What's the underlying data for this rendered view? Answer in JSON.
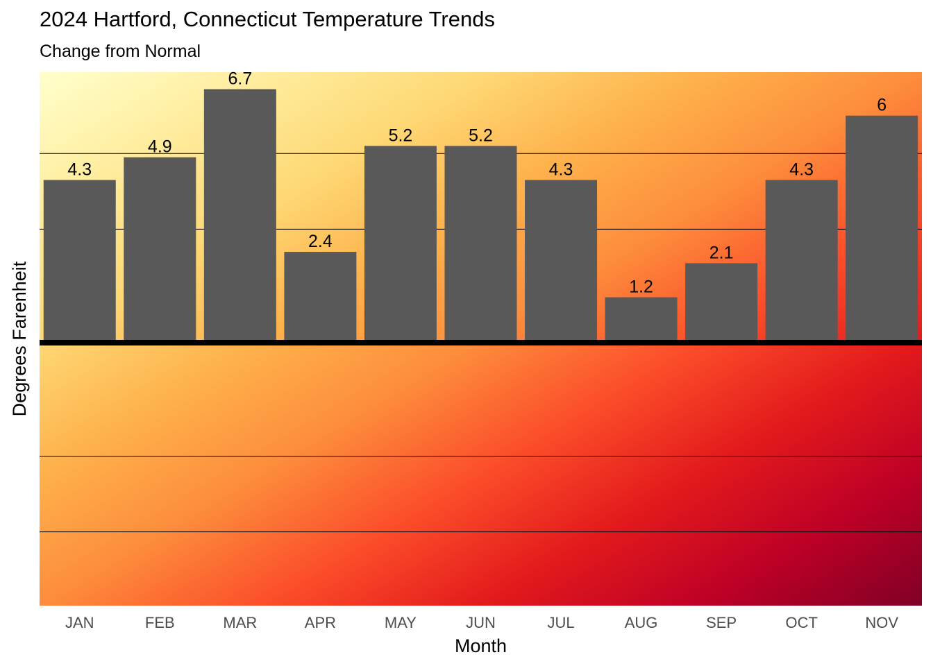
{
  "chart_data": {
    "type": "bar",
    "title": "2024 Hartford, Connecticut Temperature Trends",
    "subtitle": "Change from Normal",
    "xlabel": "Month",
    "ylabel": "Degrees Farenheit",
    "categories": [
      "JAN",
      "FEB",
      "MAR",
      "APR",
      "MAY",
      "JUN",
      "JUL",
      "AUG",
      "SEP",
      "OCT",
      "NOV"
    ],
    "values": [
      4.3,
      4.9,
      6.7,
      2.4,
      5.2,
      5.2,
      4.3,
      1.2,
      2.1,
      4.3,
      6
    ],
    "value_labels": [
      "4.3",
      "4.9",
      "6.7",
      "2.4",
      "5.2",
      "5.2",
      "4.3",
      "1.2",
      "2.1",
      "4.3",
      "6"
    ],
    "ylim": [
      -6.95,
      7.15
    ],
    "y_gridlines": [
      -5,
      -3,
      3,
      5
    ],
    "y_tick_labels_shown": false,
    "zero_line": true,
    "grid": true,
    "legend": "none",
    "colors": {
      "bar": "#595959",
      "zero_line": "#000000",
      "gridline": "#000000",
      "gradient": [
        "#ffffcc",
        "#ffeda0",
        "#fed976",
        "#feb24c",
        "#fd8d3c",
        "#fc4e2a",
        "#e31a1c",
        "#bd0026",
        "#800026"
      ]
    }
  }
}
